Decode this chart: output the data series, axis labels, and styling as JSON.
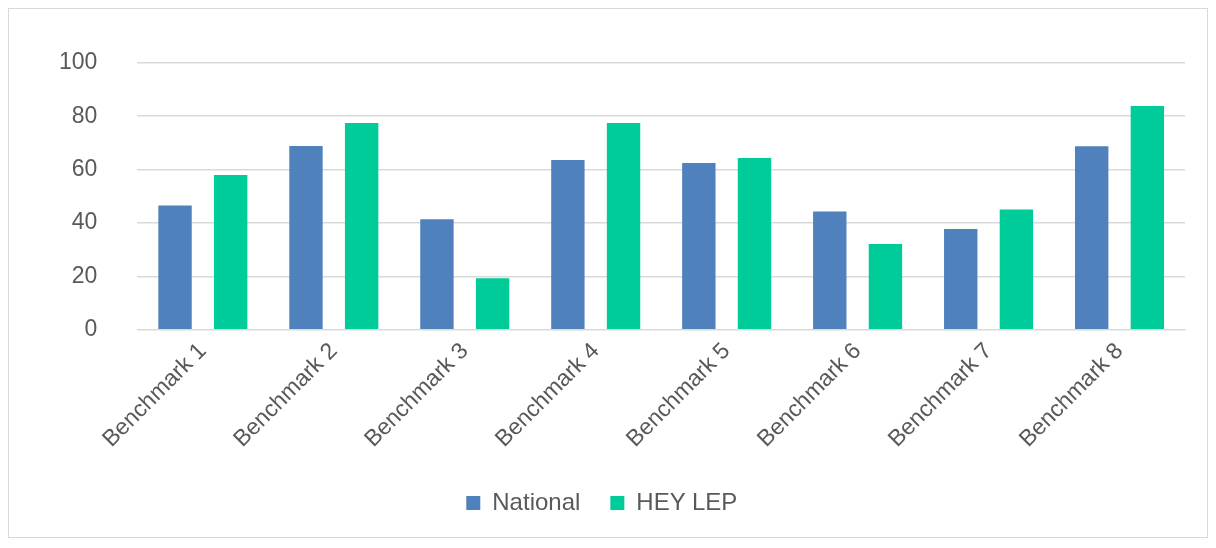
{
  "chart_data": {
    "type": "bar",
    "categories": [
      "Benchmark 1",
      "Benchmark 2",
      "Benchmark 3",
      "Benchmark 4",
      "Benchmark 5",
      "Benchmark 6",
      "Benchmark 7",
      "Benchmark 8"
    ],
    "series": [
      {
        "name": "National",
        "color": "#4f81bd",
        "values": [
          46.5,
          68.8,
          41.4,
          63.6,
          62.5,
          44.3,
          37.7,
          68.7
        ]
      },
      {
        "name": "HEY LEP",
        "color": "#00cc99",
        "values": [
          58,
          77.4,
          19.3,
          77.4,
          64.3,
          32.1,
          45,
          83.8
        ]
      }
    ],
    "ylim": [
      0,
      100
    ],
    "yticks": [
      0,
      20,
      40,
      60,
      80,
      100
    ],
    "grid": "y",
    "legend": "bottom"
  }
}
